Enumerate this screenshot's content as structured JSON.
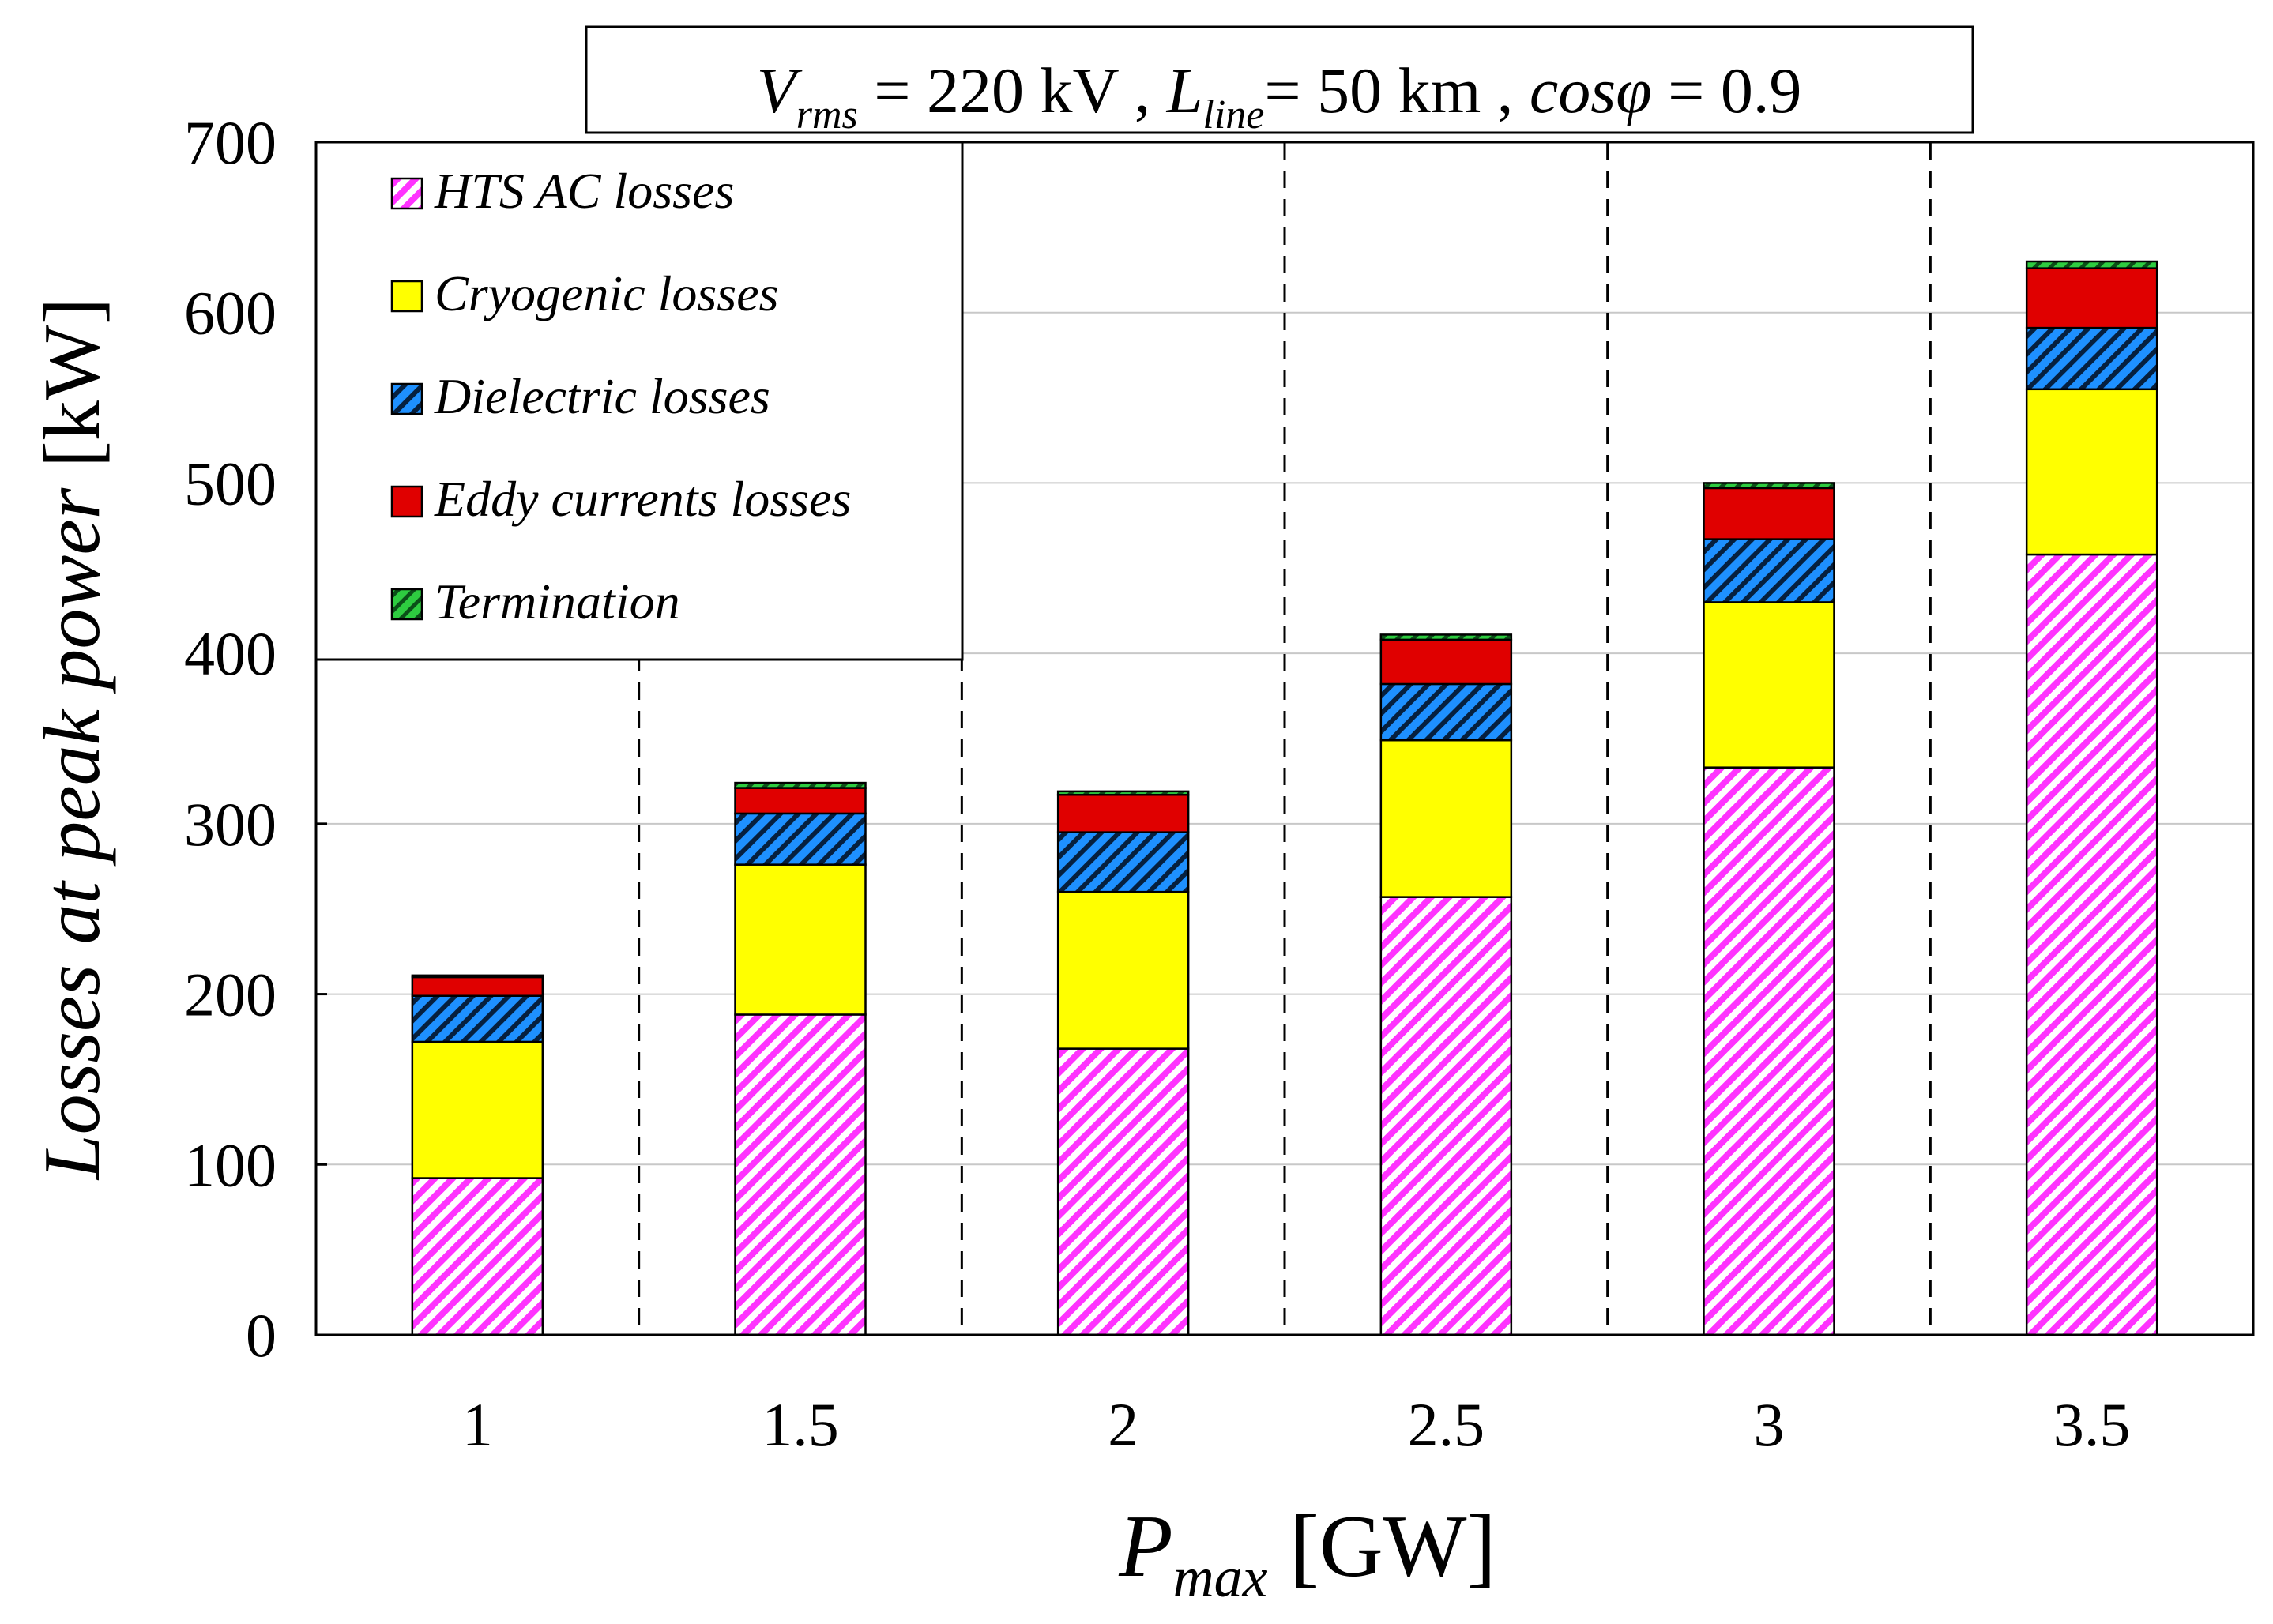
{
  "chart_data": {
    "type": "bar",
    "stacked": true,
    "title": {
      "v_sym": "V",
      "v_sub": "rms",
      "v_rest": " = 220 kV",
      "sep": " , ",
      "l_sym": "L",
      "l_sub": "line",
      "l_rest": "= 50 km",
      "c_sym": "cosφ",
      "c_rest": " = 0.9"
    },
    "xlabel": {
      "sym": "P",
      "sub": "max",
      "unit": " [GW]"
    },
    "ylabel": {
      "italic": "Losses at peak power ",
      "unit": "[kW]"
    },
    "categories": [
      "1",
      "1.5",
      "2",
      "2.5",
      "3",
      "3.5"
    ],
    "ylim": [
      0,
      700
    ],
    "yticks": [
      0,
      100,
      200,
      300,
      400,
      500,
      600,
      700
    ],
    "grid": "horizontal",
    "legend_position": "top-left",
    "series": [
      {
        "name": "HTS AC losses",
        "color": "#ff33ff",
        "pattern": "hatch",
        "values": [
          92,
          188,
          168,
          257,
          333,
          458
        ]
      },
      {
        "name": "Cryogenic losses",
        "color": "#ffff00",
        "pattern": "solid",
        "values": [
          80,
          88,
          92,
          92,
          97,
          97
        ]
      },
      {
        "name": "Dielectric losses",
        "color": "#1e90ff",
        "pattern": "hatch",
        "values": [
          27,
          30,
          35,
          33,
          37,
          36
        ]
      },
      {
        "name": "Eddy currents losses",
        "color": "#e00000",
        "pattern": "solid",
        "values": [
          11,
          15,
          22,
          26,
          30,
          35
        ]
      },
      {
        "name": "Termination",
        "color": "#2ecc40",
        "pattern": "hatch",
        "values": [
          1,
          3,
          2,
          3,
          3,
          4
        ]
      }
    ]
  }
}
